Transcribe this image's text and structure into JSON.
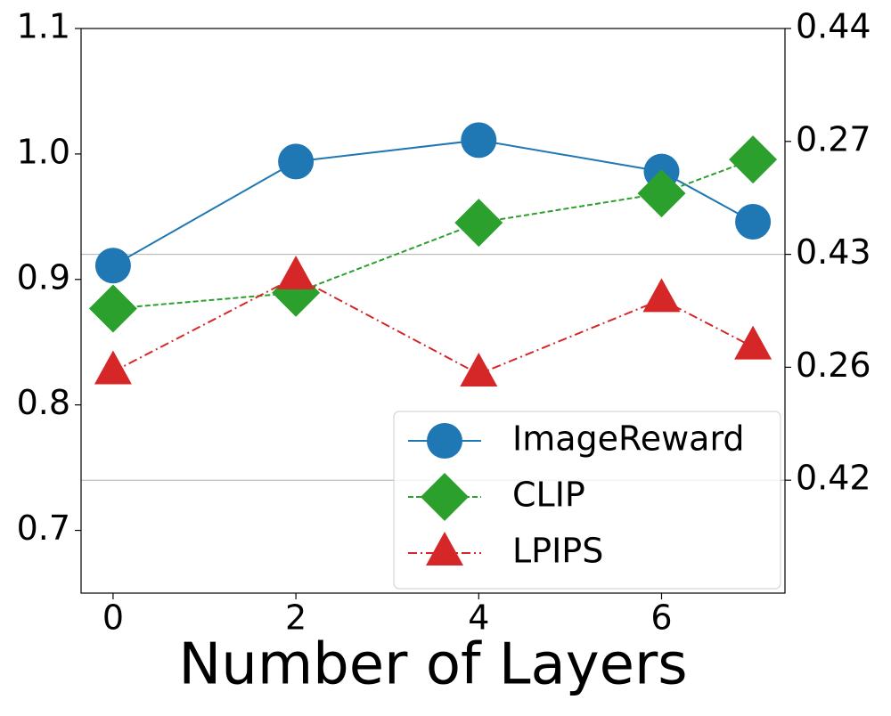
{
  "chart_data": {
    "type": "line",
    "x_label": "Number of Layers",
    "x": [
      0,
      2,
      4,
      6,
      7
    ],
    "xlim": [
      -0.35,
      7.35
    ],
    "xticks": [
      0,
      2,
      4,
      6
    ],
    "ylim": [
      0.65,
      1.1
    ],
    "yticks": [
      {
        "value": 0.7,
        "label": "0.7"
      },
      {
        "value": 0.8,
        "label": "0.8"
      },
      {
        "value": 0.9,
        "label": "0.9"
      },
      {
        "value": 1.0,
        "label": "1.0"
      },
      {
        "value": 1.1,
        "label": "1.1"
      }
    ],
    "y2lim": [
      0.415,
      0.44
    ],
    "y2ticks": [
      0.42,
      0.43,
      0.44
    ],
    "y2grid": true,
    "y3lim": [
      0.25,
      0.275
    ],
    "y3ticks": [
      0.26,
      0.27
    ],
    "legend": "lower right",
    "series": [
      {
        "name": "ImageReward",
        "color": "#1f77b4",
        "marker": "circle",
        "linestyle": "solid",
        "values": [
          0.911,
          0.994,
          1.011,
          0.986,
          0.946
        ]
      },
      {
        "name": "CLIP",
        "color": "#2ca02c",
        "marker": "diamond",
        "linestyle": "dashed",
        "axis": "y2",
        "values": [
          0.4276,
          0.4283,
          0.4314,
          0.4327,
          0.4342
        ]
      },
      {
        "name": "LPIPS",
        "color": "#d62728",
        "marker": "triangle",
        "linestyle": "dashdot",
        "axis": "y3",
        "values": [
          0.2598,
          0.264,
          0.2597,
          0.263,
          0.2609
        ]
      }
    ]
  }
}
